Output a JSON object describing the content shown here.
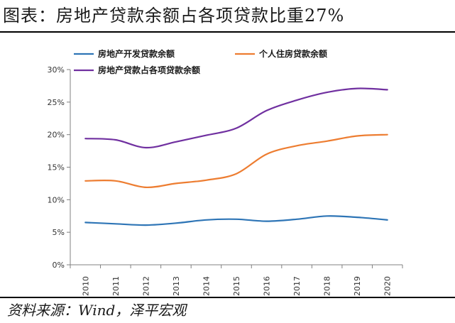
{
  "figure": {
    "title": "图表：房地产贷款余额占各项贷款比重27%",
    "source": "资料来源：Wind，泽平宏观"
  },
  "chart_data": {
    "type": "line",
    "x": [
      "2010",
      "2011",
      "2012",
      "2013",
      "2014",
      "2015",
      "2016",
      "2017",
      "2018",
      "2019",
      "2020"
    ],
    "ylim": [
      0,
      30
    ],
    "yticks": [
      0,
      5,
      10,
      15,
      20,
      25,
      30
    ],
    "ytick_labels": [
      "0%",
      "5%",
      "10%",
      "15%",
      "20%",
      "25%",
      "30%"
    ],
    "grid": false,
    "legend": "top",
    "series": [
      {
        "name": "房地产开发贷款余额",
        "color": "#2E75B6",
        "values": [
          6.5,
          6.3,
          6.1,
          6.4,
          6.9,
          7.0,
          6.7,
          7.0,
          7.5,
          7.3,
          6.9
        ]
      },
      {
        "name": "个人住房贷款余额",
        "color": "#ED7D31",
        "values": [
          12.9,
          12.9,
          11.9,
          12.5,
          13.0,
          14.0,
          17.0,
          18.3,
          19.0,
          19.8,
          20.0
        ]
      },
      {
        "name": "房地产贷款占各项贷款余额",
        "color": "#7030A0",
        "values": [
          19.4,
          19.2,
          18.0,
          18.9,
          19.9,
          21.0,
          23.7,
          25.3,
          26.5,
          27.1,
          26.9
        ]
      }
    ]
  }
}
